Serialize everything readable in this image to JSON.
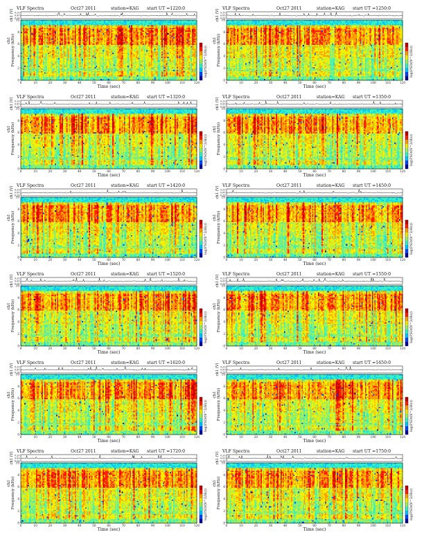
{
  "common": {
    "title": "VLF Spectra",
    "date": "Oct27 2011",
    "station": "station=KAG",
    "time_label": "Time (sec)",
    "ch_label": "ch1 (V)",
    "freq_label": "Frequency (kHz)",
    "colorbar_label": "log(PSD/(V^2/Hz))",
    "ut_prefix": "start UT ="
  },
  "colormap": [
    "#0000a0",
    "#0046ff",
    "#00c8ff",
    "#38f0c0",
    "#9cf060",
    "#f4f000",
    "#ff9c00",
    "#ff1e00",
    "#c80000"
  ],
  "chart_data": [
    {
      "type": "heatmap",
      "title": "VLF Spectra",
      "date": "Oct27 2011",
      "station": "station=KAG",
      "start_ut": "1220:0",
      "xlabel": "Time (sec)",
      "ylabel": "Frequency (kHz)",
      "waveform_ylabel": "ch1 (V)",
      "colorbar_label": "log(PSD/(V^2/Hz))",
      "xlim": [
        0,
        120
      ],
      "ylim": [
        0,
        10
      ],
      "waveform_ylim": [
        -0.2,
        0.2
      ],
      "xticks": [
        0,
        10,
        20,
        30,
        40,
        50,
        60,
        70,
        80,
        90,
        100,
        110,
        120
      ],
      "yticks": [
        0,
        2,
        4,
        6,
        8,
        10
      ],
      "waveform_yticks": [
        "0.20",
        "0.00",
        "-0.20"
      ]
    },
    {
      "type": "heatmap",
      "title": "VLF Spectra",
      "date": "Oct27 2011",
      "station": "station=KAG",
      "start_ut": "1250:0",
      "xlabel": "Time (sec)",
      "ylabel": "Frequency (kHz)",
      "waveform_ylabel": "ch1 (V)",
      "colorbar_label": "log(PSD/(V^2/Hz))",
      "xlim": [
        0,
        120
      ],
      "ylim": [
        0,
        10
      ],
      "waveform_ylim": [
        -0.2,
        0.2
      ],
      "xticks": [
        0,
        10,
        20,
        30,
        40,
        50,
        60,
        70,
        80,
        90,
        100,
        110,
        120
      ],
      "yticks": [
        0,
        2,
        4,
        6,
        8,
        10
      ],
      "waveform_yticks": [
        "0.20",
        "0.00",
        "-0.20"
      ]
    },
    {
      "type": "heatmap",
      "title": "VLF Spectra",
      "date": "Oct27 2011",
      "station": "station=KAG",
      "start_ut": "1320:0",
      "xlabel": "Time (sec)",
      "ylabel": "Frequency (kHz)",
      "waveform_ylabel": "ch1 (V)",
      "colorbar_label": "log(PSD/(V^2/Hz))",
      "xlim": [
        0,
        120
      ],
      "ylim": [
        0,
        10
      ],
      "waveform_ylim": [
        -0.2,
        0.2
      ],
      "xticks": [
        0,
        10,
        20,
        30,
        40,
        50,
        60,
        70,
        80,
        90,
        100,
        110,
        120
      ],
      "yticks": [
        0,
        2,
        4,
        6,
        8,
        10
      ],
      "waveform_yticks": [
        "0.20",
        "0.00",
        "-0.20"
      ]
    },
    {
      "type": "heatmap",
      "title": "VLF Spectra",
      "date": "Oct27 2011",
      "station": "station=KAG",
      "start_ut": "1350:0",
      "xlabel": "Time (sec)",
      "ylabel": "Frequency (kHz)",
      "waveform_ylabel": "ch1 (V)",
      "colorbar_label": "log(PSD/(V^2/Hz))",
      "xlim": [
        0,
        120
      ],
      "ylim": [
        0,
        10
      ],
      "waveform_ylim": [
        -0.2,
        0.2
      ],
      "xticks": [
        0,
        10,
        20,
        30,
        40,
        50,
        60,
        70,
        80,
        90,
        100,
        110,
        120
      ],
      "yticks": [
        0,
        2,
        4,
        6,
        8,
        10
      ],
      "waveform_yticks": [
        "0.20",
        "0.00",
        "-0.20"
      ]
    },
    {
      "type": "heatmap",
      "title": "VLF Spectra",
      "date": "Oct27 2011",
      "station": "station=KAG",
      "start_ut": "1420:0",
      "xlabel": "Time (sec)",
      "ylabel": "Frequency (kHz)",
      "waveform_ylabel": "ch1 (V)",
      "colorbar_label": "log(PSD/(V^2/Hz))",
      "xlim": [
        0,
        120
      ],
      "ylim": [
        0,
        10
      ],
      "waveform_ylim": [
        -0.2,
        0.2
      ],
      "xticks": [
        0,
        10,
        20,
        30,
        40,
        50,
        60,
        70,
        80,
        90,
        100,
        110,
        120
      ],
      "yticks": [
        0,
        2,
        4,
        6,
        8,
        10
      ],
      "waveform_yticks": [
        "0.20",
        "0.00",
        "-0.20"
      ]
    },
    {
      "type": "heatmap",
      "title": "VLF Spectra",
      "date": "Oct27 2011",
      "station": "station=KAG",
      "start_ut": "1450:0",
      "xlabel": "Time (sec)",
      "ylabel": "Frequency (kHz)",
      "waveform_ylabel": "ch1 (V)",
      "colorbar_label": "log(PSD/(V^2/Hz))",
      "xlim": [
        0,
        120
      ],
      "ylim": [
        0,
        10
      ],
      "waveform_ylim": [
        -0.2,
        0.2
      ],
      "xticks": [
        0,
        10,
        20,
        30,
        40,
        50,
        60,
        70,
        80,
        90,
        100,
        110,
        120
      ],
      "yticks": [
        0,
        2,
        4,
        6,
        8,
        10
      ],
      "waveform_yticks": [
        "0.20",
        "0.00",
        "-0.20"
      ]
    },
    {
      "type": "heatmap",
      "title": "VLF Spectra",
      "date": "Oct27 2011",
      "station": "station=KAG",
      "start_ut": "1520:0",
      "xlabel": "Time (sec)",
      "ylabel": "Frequency (kHz)",
      "waveform_ylabel": "ch1 (V)",
      "colorbar_label": "log(PSD/(V^2/Hz))",
      "xlim": [
        0,
        120
      ],
      "ylim": [
        0,
        10
      ],
      "waveform_ylim": [
        -0.2,
        0.2
      ],
      "xticks": [
        0,
        10,
        20,
        30,
        40,
        50,
        60,
        70,
        80,
        90,
        100,
        110,
        120
      ],
      "yticks": [
        0,
        2,
        4,
        6,
        8,
        10
      ],
      "waveform_yticks": [
        "0.20",
        "0.00",
        "-0.20"
      ]
    },
    {
      "type": "heatmap",
      "title": "VLF Spectra",
      "date": "Oct27 2011",
      "station": "station=KAG",
      "start_ut": "1550:0",
      "xlabel": "Time (sec)",
      "ylabel": "Frequency (kHz)",
      "waveform_ylabel": "ch1 (V)",
      "colorbar_label": "log(PSD/(V^2/Hz))",
      "xlim": [
        0,
        120
      ],
      "ylim": [
        0,
        10
      ],
      "waveform_ylim": [
        -0.2,
        0.2
      ],
      "xticks": [
        0,
        10,
        20,
        30,
        40,
        50,
        60,
        70,
        80,
        90,
        100,
        110,
        120
      ],
      "yticks": [
        0,
        2,
        4,
        6,
        8,
        10
      ],
      "waveform_yticks": [
        "0.20",
        "0.00",
        "-0.20"
      ]
    },
    {
      "type": "heatmap",
      "title": "VLF Spectra",
      "date": "Oct27 2011",
      "station": "station=KAG",
      "start_ut": "1620:0",
      "xlabel": "Time (sec)",
      "ylabel": "Frequency (kHz)",
      "waveform_ylabel": "ch1 (V)",
      "colorbar_label": "log(PSD/(V^2/Hz))",
      "xlim": [
        0,
        120
      ],
      "ylim": [
        0,
        10
      ],
      "waveform_ylim": [
        -0.2,
        0.2
      ],
      "xticks": [
        0,
        10,
        20,
        30,
        40,
        50,
        60,
        70,
        80,
        90,
        100,
        110,
        120
      ],
      "yticks": [
        0,
        2,
        4,
        6,
        8,
        10
      ],
      "waveform_yticks": [
        "0.20",
        "0.00",
        "-0.20"
      ]
    },
    {
      "type": "heatmap",
      "title": "VLF Spectra",
      "date": "Oct27 2011",
      "station": "station=KAG",
      "start_ut": "1650:0",
      "xlabel": "Time (sec)",
      "ylabel": "Frequency (kHz)",
      "waveform_ylabel": "ch1 (V)",
      "colorbar_label": "log(PSD/(V^2/Hz))",
      "xlim": [
        0,
        120
      ],
      "ylim": [
        0,
        10
      ],
      "waveform_ylim": [
        -0.2,
        0.2
      ],
      "xticks": [
        0,
        10,
        20,
        30,
        40,
        50,
        60,
        70,
        80,
        90,
        100,
        110,
        120
      ],
      "yticks": [
        0,
        2,
        4,
        6,
        8,
        10
      ],
      "waveform_yticks": [
        "0.20",
        "0.00",
        "-0.20"
      ]
    },
    {
      "type": "heatmap",
      "title": "VLF Spectra",
      "date": "Oct27 2011",
      "station": "station=KAG",
      "start_ut": "1720:0",
      "xlabel": "Time (sec)",
      "ylabel": "Frequency (kHz)",
      "waveform_ylabel": "ch1 (V)",
      "colorbar_label": "log(PSD/(V^2/Hz))",
      "xlim": [
        0,
        120
      ],
      "ylim": [
        0,
        10
      ],
      "waveform_ylim": [
        -0.2,
        0.2
      ],
      "xticks": [
        0,
        10,
        20,
        30,
        40,
        50,
        60,
        70,
        80,
        90,
        100,
        110,
        120
      ],
      "yticks": [
        0,
        2,
        4,
        6,
        8,
        10
      ],
      "waveform_yticks": [
        "0.20",
        "0.00",
        "-0.20"
      ]
    },
    {
      "type": "heatmap",
      "title": "VLF Spectra",
      "date": "Oct27 2011",
      "station": "station=KAG",
      "start_ut": "1750:0",
      "xlabel": "Time (sec)",
      "ylabel": "Frequency (kHz)",
      "waveform_ylabel": "ch1 (V)",
      "colorbar_label": "log(PSD/(V^2/Hz))",
      "xlim": [
        0,
        120
      ],
      "ylim": [
        0,
        10
      ],
      "waveform_ylim": [
        -0.2,
        0.2
      ],
      "xticks": [
        0,
        10,
        20,
        30,
        40,
        50,
        60,
        70,
        80,
        90,
        100,
        110,
        120
      ],
      "yticks": [
        0,
        2,
        4,
        6,
        8,
        10
      ],
      "waveform_yticks": [
        "0.20",
        "0.00",
        "-0.20"
      ]
    }
  ]
}
